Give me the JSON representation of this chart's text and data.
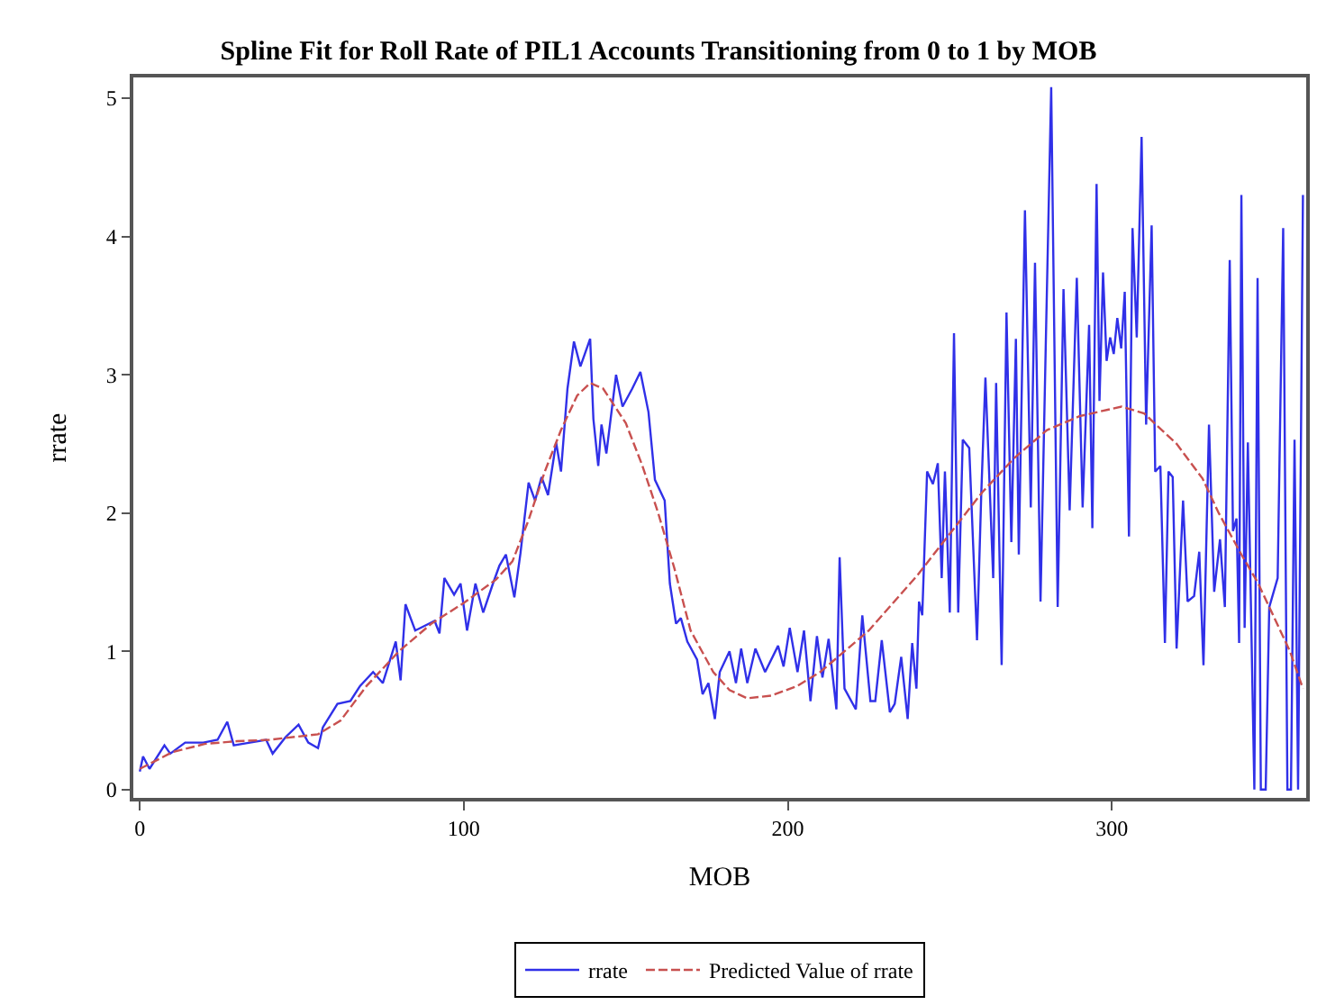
{
  "chart_data": {
    "type": "line",
    "title": "Spline Fit for Roll Rate of PIL1 Accounts Transitioning from 0 to 1 by MOB",
    "xlabel": "MOB",
    "ylabel": "rrate",
    "xlim": [
      -2,
      360
    ],
    "xticks": [
      0,
      100,
      200,
      300
    ],
    "ylim": [
      -0.06,
      5.15
    ],
    "yticks": [
      0,
      1,
      2,
      3,
      4,
      5
    ],
    "legend": "bottom",
    "marker": "none",
    "series": [
      {
        "name": "rrate",
        "color": "#3030e8",
        "line_style": "solid",
        "x": [
          0,
          1,
          3,
          7.6,
          9.4,
          14,
          19.6,
          24,
          27,
          29,
          34,
          39,
          41,
          45,
          49,
          52,
          55,
          56.5,
          61,
          65,
          68,
          72,
          75,
          79,
          80.5,
          82,
          85,
          91,
          92.5,
          94,
          97,
          99,
          101,
          103.6,
          106,
          109,
          111,
          113,
          115.6,
          117.5,
          120,
          122,
          124,
          126,
          128.5,
          130,
          132,
          134,
          136,
          139,
          140,
          141.5,
          142.5,
          144,
          147,
          149,
          152,
          154.5,
          157,
          159,
          162,
          163.6,
          165.5,
          167,
          169,
          172,
          173.7,
          175.5,
          177.5,
          179,
          182,
          184,
          185.6,
          187.5,
          190,
          193,
          197,
          198.7,
          200.6,
          203,
          205,
          207,
          209,
          210.7,
          212.6,
          215,
          216,
          217.5,
          221,
          223,
          225.5,
          227,
          229,
          231.5,
          233,
          235,
          237,
          238.4,
          239.7,
          240.5,
          241.5,
          243,
          244.8,
          246.3,
          247.5,
          248.5,
          250,
          251.3,
          252.6,
          254,
          256,
          258.4,
          259.7,
          261,
          263.4,
          264.3,
          266,
          267.5,
          269,
          270.4,
          271.3,
          273.2,
          275,
          276.3,
          278,
          279.6,
          281.3,
          283.3,
          285.1,
          287,
          289.2,
          291,
          293,
          294,
          295.3,
          296.2,
          297.3,
          298.4,
          299.5,
          300.6,
          301.7,
          302.9,
          304,
          305.3,
          306.4,
          307.7,
          309.2,
          310.6,
          312.3,
          313.4,
          315,
          316.4,
          317.5,
          318.8,
          320,
          322,
          323.4,
          325.4,
          327,
          328.3,
          330,
          331.6,
          333.4,
          334.9,
          336.4,
          337.4,
          338.5,
          339.3,
          340,
          341,
          342,
          344,
          345,
          346,
          347.5,
          348.6,
          351.2,
          352.9,
          354.2,
          355.3,
          356.4,
          357.5,
          359
        ],
        "values": [
          0.13,
          0.24,
          0.15,
          0.32,
          0.26,
          0.34,
          0.34,
          0.36,
          0.49,
          0.32,
          0.34,
          0.36,
          0.26,
          0.38,
          0.47,
          0.34,
          0.3,
          0.45,
          0.62,
          0.64,
          0.75,
          0.85,
          0.77,
          1.07,
          0.79,
          1.34,
          1.15,
          1.22,
          1.13,
          1.53,
          1.41,
          1.49,
          1.15,
          1.49,
          1.28,
          1.49,
          1.62,
          1.7,
          1.39,
          1.71,
          2.22,
          2.09,
          2.26,
          2.13,
          2.51,
          2.3,
          2.9,
          3.24,
          3.06,
          3.26,
          2.68,
          2.34,
          2.64,
          2.43,
          3.0,
          2.77,
          2.9,
          3.02,
          2.73,
          2.24,
          2.09,
          1.49,
          1.2,
          1.24,
          1.07,
          0.94,
          0.69,
          0.77,
          0.51,
          0.85,
          1.0,
          0.77,
          1.02,
          0.77,
          1.02,
          0.85,
          1.04,
          0.89,
          1.17,
          0.85,
          1.15,
          0.64,
          1.11,
          0.81,
          1.09,
          0.58,
          1.68,
          0.73,
          0.58,
          1.26,
          0.64,
          0.64,
          1.08,
          0.56,
          0.62,
          0.96,
          0.51,
          1.06,
          0.73,
          1.36,
          1.26,
          2.3,
          2.21,
          2.36,
          1.53,
          2.3,
          1.28,
          3.3,
          1.28,
          2.53,
          2.47,
          1.08,
          2.13,
          2.98,
          1.53,
          2.94,
          0.9,
          3.45,
          1.79,
          3.26,
          1.7,
          4.19,
          2.04,
          3.81,
          1.36,
          3.19,
          5.08,
          1.32,
          3.62,
          2.02,
          3.7,
          2.04,
          3.36,
          1.89,
          4.38,
          2.81,
          3.74,
          3.1,
          3.27,
          3.15,
          3.41,
          3.19,
          3.6,
          1.83,
          4.06,
          3.27,
          4.72,
          2.64,
          4.08,
          2.3,
          2.34,
          1.06,
          2.3,
          2.26,
          1.02,
          2.09,
          1.36,
          1.4,
          1.72,
          0.9,
          2.64,
          1.43,
          1.81,
          1.32,
          3.83,
          1.87,
          1.96,
          1.06,
          4.3,
          1.17,
          2.51,
          0,
          3.7,
          0,
          0,
          1.32,
          1.53,
          4.06,
          0,
          0,
          2.53,
          0,
          4.3
        ]
      },
      {
        "name": "Predicted Value of rrate",
        "color": "#c8504f",
        "line_style": "dashed",
        "x": [
          0,
          10,
          20,
          30,
          40,
          55,
          62,
          70,
          80,
          90,
          100,
          110,
          115,
          120,
          125,
          130,
          135,
          139,
          143,
          150,
          155,
          160,
          165,
          170,
          177,
          182,
          187.5,
          195,
          203,
          210,
          225,
          240,
          250,
          260,
          270,
          280,
          290,
          303,
          310,
          320,
          328,
          333,
          340,
          345,
          350,
          355,
          359
        ],
        "values": [
          0.15,
          0.27,
          0.33,
          0.35,
          0.36,
          0.4,
          0.5,
          0.75,
          1.0,
          1.2,
          1.35,
          1.52,
          1.65,
          1.95,
          2.3,
          2.6,
          2.85,
          2.94,
          2.9,
          2.65,
          2.35,
          2.0,
          1.6,
          1.15,
          0.85,
          0.72,
          0.66,
          0.68,
          0.75,
          0.85,
          1.15,
          1.55,
          1.85,
          2.15,
          2.4,
          2.6,
          2.7,
          2.77,
          2.72,
          2.5,
          2.25,
          2.0,
          1.7,
          1.5,
          1.25,
          1.0,
          0.73
        ]
      }
    ]
  }
}
